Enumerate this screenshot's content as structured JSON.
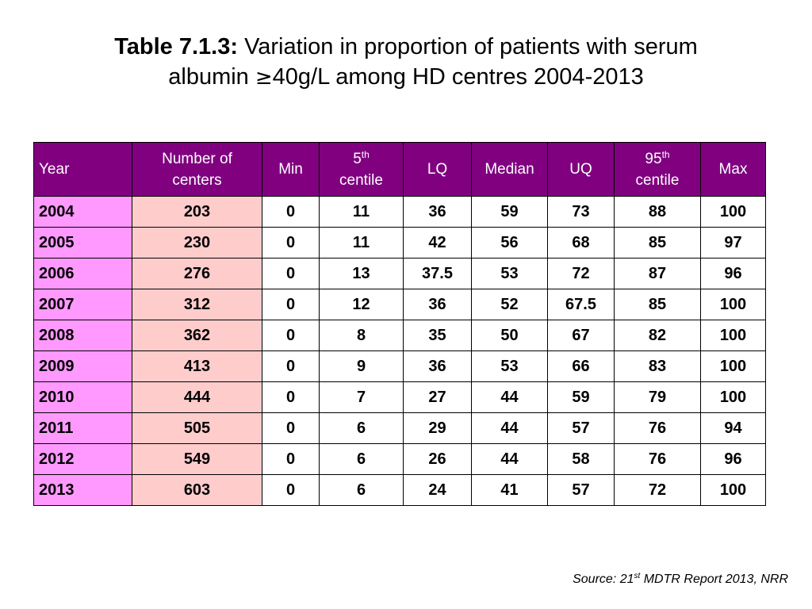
{
  "title": {
    "label": "Table 7.1.3:",
    "text_line1": "Variation in proportion of patients with serum",
    "text_line2_prefix": "albumin ",
    "geq_symbol": "≥",
    "text_line2_suffix": "40g/L among HD centres 2004-2013"
  },
  "table": {
    "headers": {
      "year": "Year",
      "centers_line1": "Number of",
      "centers_line2": "centers",
      "min": "Min",
      "p5_num": "5",
      "p5_sup": "th",
      "p5_word": "centile",
      "lq": "LQ",
      "median": "Median",
      "uq": "UQ",
      "p95_num": "95",
      "p95_sup": "th",
      "p95_word": "centile",
      "max": "Max"
    },
    "rows": [
      [
        "2004",
        "203",
        "0",
        "11",
        "36",
        "59",
        "73",
        "88",
        "100"
      ],
      [
        "2005",
        "230",
        "0",
        "11",
        "42",
        "56",
        "68",
        "85",
        "97"
      ],
      [
        "2006",
        "276",
        "0",
        "13",
        "37.5",
        "53",
        "72",
        "87",
        "96"
      ],
      [
        "2007",
        "312",
        "0",
        "12",
        "36",
        "52",
        "67.5",
        "85",
        "100"
      ],
      [
        "2008",
        "362",
        "0",
        "8",
        "35",
        "50",
        "67",
        "82",
        "100"
      ],
      [
        "2009",
        "413",
        "0",
        "9",
        "36",
        "53",
        "66",
        "83",
        "100"
      ],
      [
        "2010",
        "444",
        "0",
        "7",
        "27",
        "44",
        "59",
        "79",
        "100"
      ],
      [
        "2011",
        "505",
        "0",
        "6",
        "29",
        "44",
        "57",
        "76",
        "94"
      ],
      [
        "2012",
        "549",
        "0",
        "6",
        "26",
        "44",
        "58",
        "76",
        "96"
      ],
      [
        "2013",
        "603",
        "0",
        "6",
        "24",
        "41",
        "57",
        "72",
        "100"
      ]
    ]
  },
  "source": {
    "prefix": "Source: 21",
    "sup": "st",
    "suffix": " MDTR Report 2013, NRR"
  },
  "colors": {
    "header_bg": "#800080",
    "year_bg": "#ff99ff",
    "centers_bg": "#ffcccc"
  }
}
